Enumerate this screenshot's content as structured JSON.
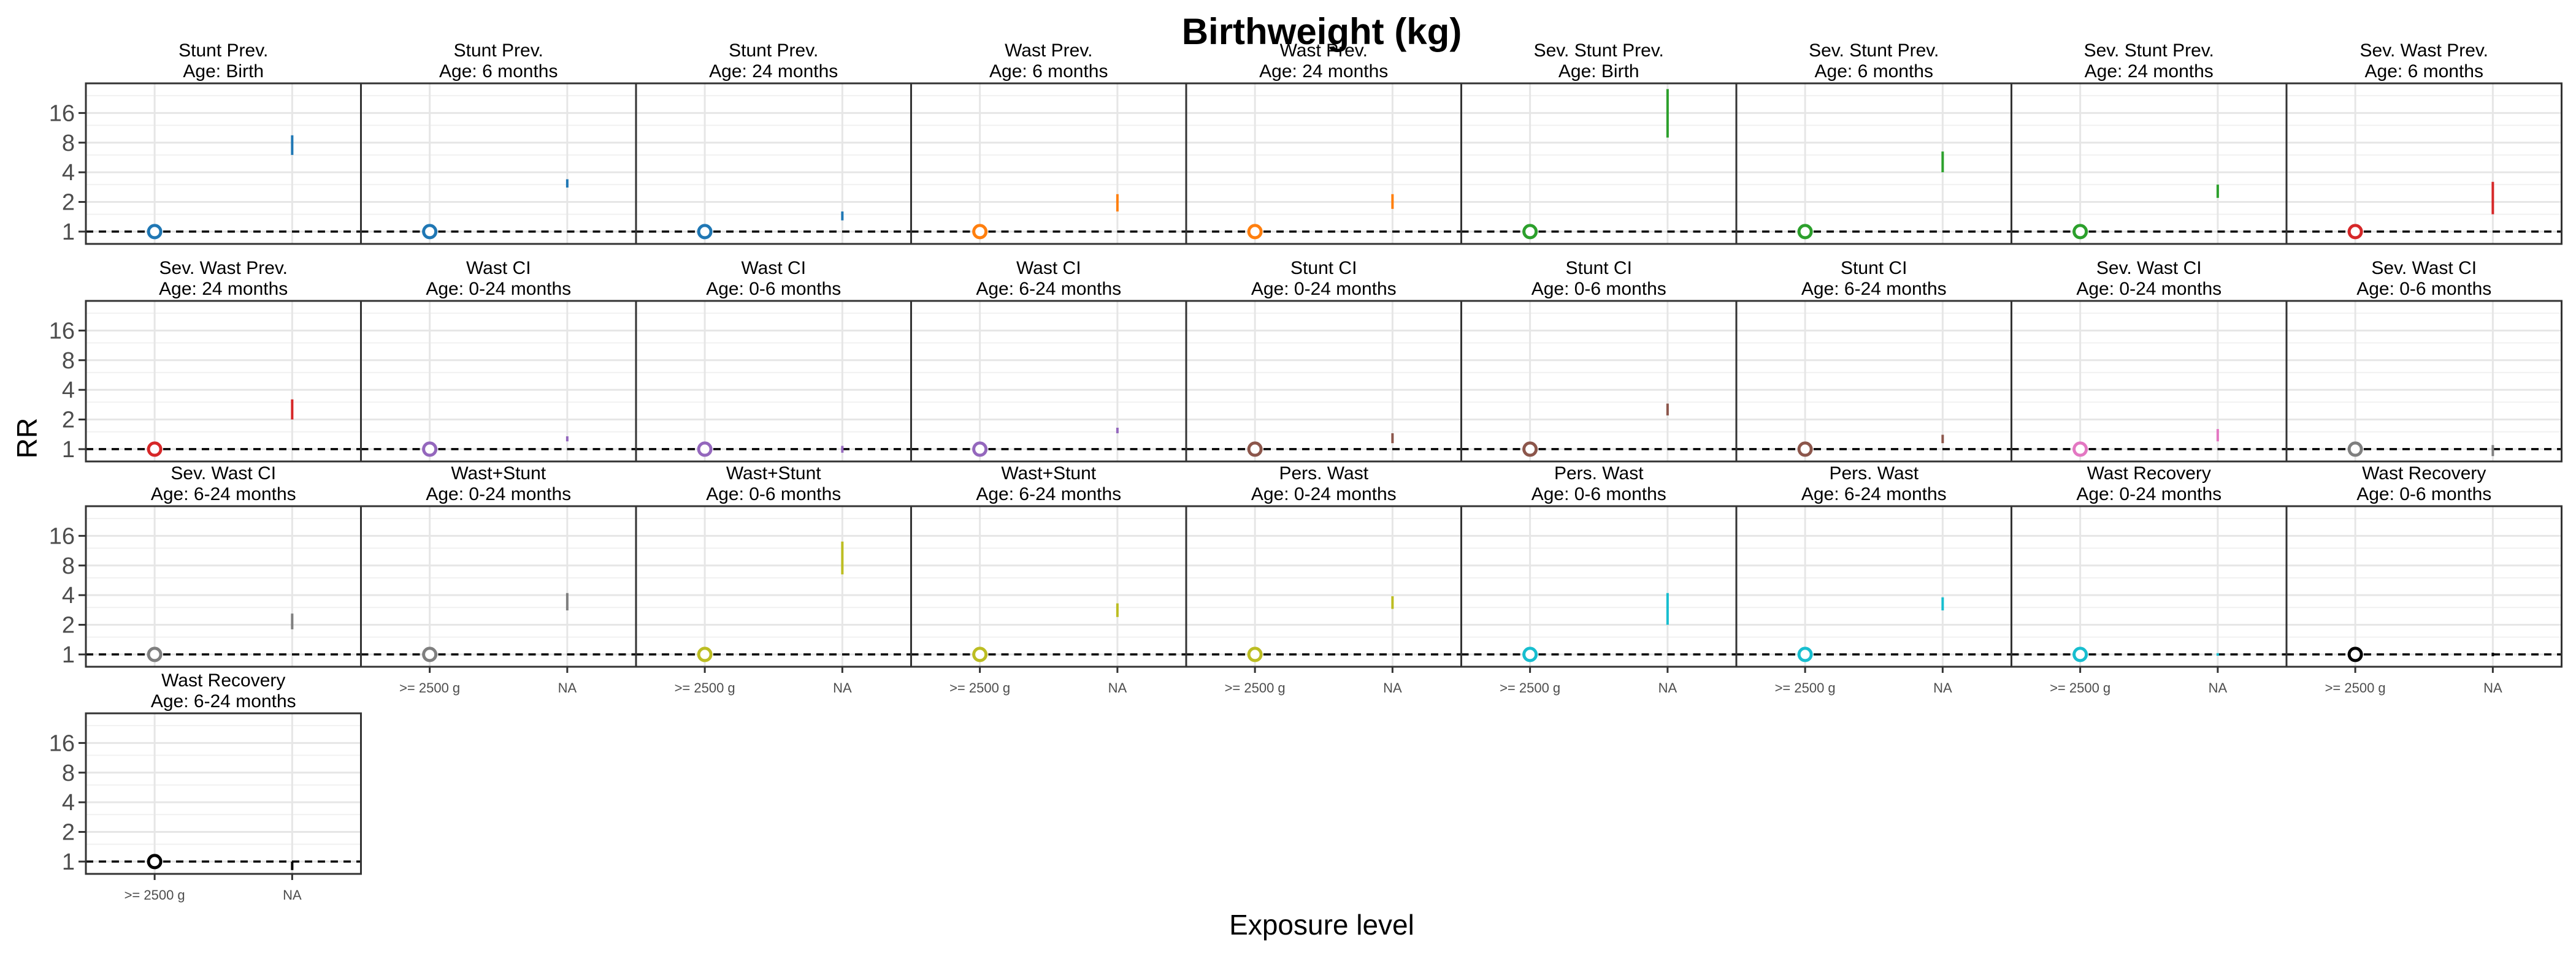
{
  "chart_data": {
    "type": "scatter",
    "title": "Birthweight (kg)",
    "xlabel": "Exposure level",
    "ylabel": "RR",
    "categories": [
      ">= 2500 g",
      "NA"
    ],
    "y_scale": "log2",
    "y_ticks": [
      1,
      2,
      4,
      8,
      16
    ],
    "ylim": [
      0.75,
      32
    ],
    "reference_line": 1,
    "grid": true,
    "legend": "none",
    "panels": [
      {
        "title": [
          "Stunt Prev.",
          "Age: Birth"
        ],
        "color": "#1f77b4",
        "ref_rr": 1,
        "ci_na": [
          6.0,
          9.5
        ]
      },
      {
        "title": [
          "Stunt Prev.",
          "Age: 6 months"
        ],
        "color": "#1f77b4",
        "ref_rr": 1,
        "ci_na": [
          2.8,
          3.4
        ]
      },
      {
        "title": [
          "Stunt Prev.",
          "Age: 24 months"
        ],
        "color": "#1f77b4",
        "ref_rr": 1,
        "ci_na": [
          1.3,
          1.6
        ]
      },
      {
        "title": [
          "Wast Prev.",
          "Age: 6 months"
        ],
        "color": "#ff7f0e",
        "ref_rr": 1,
        "ci_na": [
          1.6,
          2.4
        ]
      },
      {
        "title": [
          "Wast Prev.",
          "Age: 24 months"
        ],
        "color": "#ff7f0e",
        "ref_rr": 1,
        "ci_na": [
          1.7,
          2.4
        ]
      },
      {
        "title": [
          "Sev. Stunt Prev.",
          "Age: Birth"
        ],
        "color": "#2ca02c",
        "ref_rr": 1,
        "ci_na": [
          9.0,
          28.0
        ]
      },
      {
        "title": [
          "Sev. Stunt Prev.",
          "Age: 6 months"
        ],
        "color": "#2ca02c",
        "ref_rr": 1,
        "ci_na": [
          4.0,
          6.5
        ]
      },
      {
        "title": [
          "Sev. Stunt Prev.",
          "Age: 24 months"
        ],
        "color": "#2ca02c",
        "ref_rr": 1,
        "ci_na": [
          2.2,
          3.0
        ]
      },
      {
        "title": [
          "Sev. Wast Prev.",
          "Age: 6 months"
        ],
        "color": "#d62728",
        "ref_rr": 1,
        "ci_na": [
          1.5,
          3.2
        ]
      },
      {
        "title": [
          "Sev. Wast Prev.",
          "Age: 24 months"
        ],
        "color": "#d62728",
        "ref_rr": 1,
        "ci_na": [
          2.0,
          3.2
        ]
      },
      {
        "title": [
          "Wast CI",
          "Age: 0-24 months"
        ],
        "color": "#9467bd",
        "ref_rr": 1,
        "ci_na": [
          1.2,
          1.35
        ]
      },
      {
        "title": [
          "Wast CI",
          "Age: 0-6 months"
        ],
        "color": "#9467bd",
        "ref_rr": 1,
        "ci_na": [
          0.92,
          1.08
        ]
      },
      {
        "title": [
          "Wast CI",
          "Age: 6-24 months"
        ],
        "color": "#9467bd",
        "ref_rr": 1,
        "ci_na": [
          1.45,
          1.65
        ]
      },
      {
        "title": [
          "Stunt CI",
          "Age: 0-24 months"
        ],
        "color": "#8c564b",
        "ref_rr": 1,
        "ci_na": [
          1.15,
          1.45
        ]
      },
      {
        "title": [
          "Stunt CI",
          "Age: 0-6 months"
        ],
        "color": "#8c564b",
        "ref_rr": 1,
        "ci_na": [
          2.2,
          2.9
        ]
      },
      {
        "title": [
          "Stunt CI",
          "Age: 6-24 months"
        ],
        "color": "#8c564b",
        "ref_rr": 1,
        "ci_na": [
          1.15,
          1.4
        ]
      },
      {
        "title": [
          "Sev. Wast CI",
          "Age: 0-24 months"
        ],
        "color": "#e377c2",
        "ref_rr": 1,
        "ci_na": [
          1.2,
          1.6
        ]
      },
      {
        "title": [
          "Sev. Wast CI",
          "Age: 0-6 months"
        ],
        "color": "#7f7f7f",
        "ref_rr": 1,
        "ci_na": [
          0.85,
          1.1
        ]
      },
      {
        "title": [
          "Sev. Wast CI",
          "Age: 6-24 months"
        ],
        "color": "#7f7f7f",
        "ref_rr": 1,
        "ci_na": [
          1.8,
          2.6
        ]
      },
      {
        "title": [
          "Wast+Stunt",
          "Age: 0-24 months"
        ],
        "color": "#7f7f7f",
        "ref_rr": 1,
        "ci_na": [
          2.8,
          4.2
        ]
      },
      {
        "title": [
          "Wast+Stunt",
          "Age: 0-6 months"
        ],
        "color": "#bcbd22",
        "ref_rr": 1,
        "ci_na": [
          6.5,
          14.0
        ]
      },
      {
        "title": [
          "Wast+Stunt",
          "Age: 6-24 months"
        ],
        "color": "#bcbd22",
        "ref_rr": 1,
        "ci_na": [
          2.4,
          3.3
        ]
      },
      {
        "title": [
          "Pers. Wast",
          "Age: 0-24 months"
        ],
        "color": "#bcbd22",
        "ref_rr": 1,
        "ci_na": [
          2.9,
          3.9
        ]
      },
      {
        "title": [
          "Pers. Wast",
          "Age: 0-6 months"
        ],
        "color": "#17becf",
        "ref_rr": 1,
        "ci_na": [
          2.0,
          4.2
        ]
      },
      {
        "title": [
          "Pers. Wast",
          "Age: 6-24 months"
        ],
        "color": "#17becf",
        "ref_rr": 1,
        "ci_na": [
          2.8,
          3.8
        ]
      },
      {
        "title": [
          "Wast Recovery",
          "Age: 0-24 months"
        ],
        "color": "#17becf",
        "ref_rr": 1,
        "ci_na": [
          0.97,
          1.03
        ]
      },
      {
        "title": [
          "Wast Recovery",
          "Age: 0-6 months"
        ],
        "color": "#000000",
        "ref_rr": 1,
        "ci_na": [
          0.96,
          1.04
        ]
      },
      {
        "title": [
          "Wast Recovery",
          "Age: 6-24 months"
        ],
        "color": "#000000",
        "ref_rr": 1,
        "ci_na": [
          0.82,
          1.0
        ]
      }
    ]
  }
}
